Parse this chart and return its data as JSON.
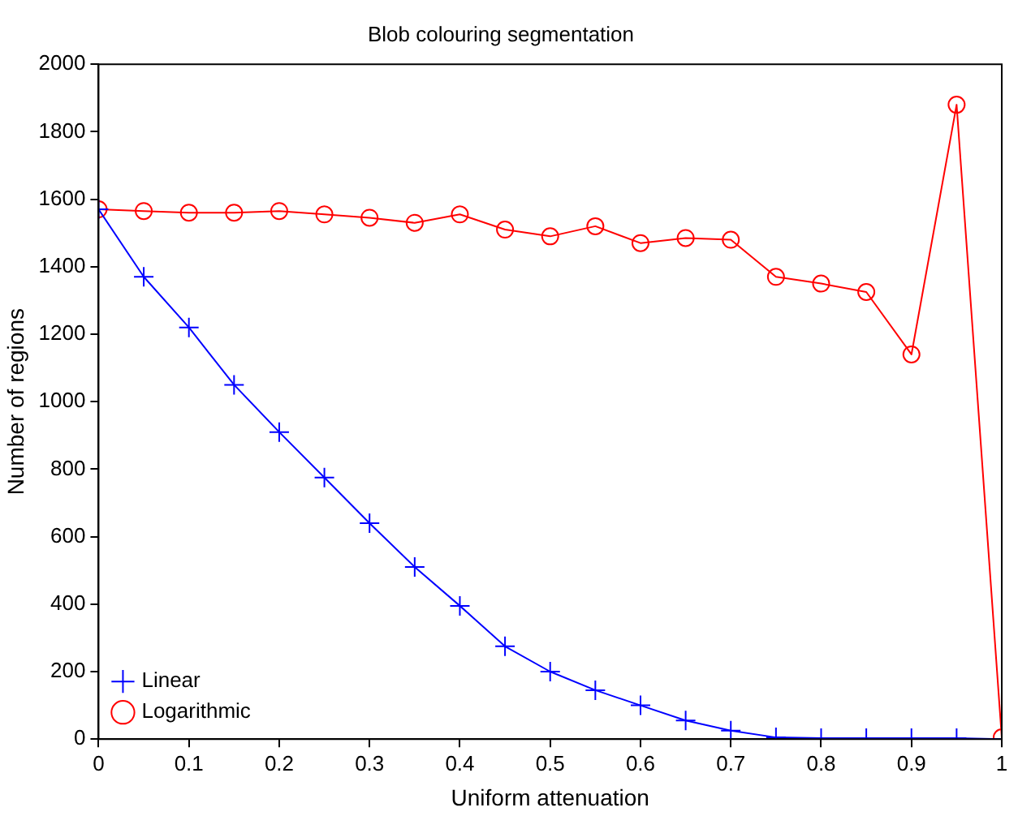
{
  "chart_data": {
    "type": "line",
    "title": "Blob colouring segmentation",
    "xlabel": "Uniform attenuation",
    "ylabel": "Number of regions",
    "x": [
      0,
      0.05,
      0.1,
      0.15,
      0.2,
      0.25,
      0.3,
      0.35,
      0.4,
      0.45,
      0.5,
      0.55,
      0.6,
      0.65,
      0.7,
      0.75,
      0.8,
      0.85,
      0.9,
      0.95,
      1
    ],
    "series": [
      {
        "name": "Linear",
        "color": "#0000ff",
        "marker": "cross",
        "values": [
          1570,
          1370,
          1220,
          1050,
          910,
          775,
          640,
          510,
          395,
          275,
          200,
          145,
          100,
          55,
          25,
          5,
          3,
          3,
          3,
          3,
          0
        ]
      },
      {
        "name": "Logarithmic",
        "color": "#ff0000",
        "marker": "circle",
        "values": [
          1570,
          1565,
          1560,
          1560,
          1565,
          1555,
          1545,
          1530,
          1555,
          1510,
          1490,
          1520,
          1470,
          1485,
          1480,
          1370,
          1350,
          1325,
          1140,
          1880,
          5
        ]
      }
    ],
    "xlim": [
      0,
      1
    ],
    "xticks": [
      0,
      0.1,
      0.2,
      0.3,
      0.4,
      0.5,
      0.6,
      0.7,
      0.8,
      0.9,
      1
    ],
    "ylim": [
      0,
      2000
    ],
    "yticks": [
      0,
      200,
      400,
      600,
      800,
      1000,
      1200,
      1400,
      1600,
      1800,
      2000
    ],
    "grid": false,
    "legend": "bottom left",
    "line_style": "solid"
  }
}
